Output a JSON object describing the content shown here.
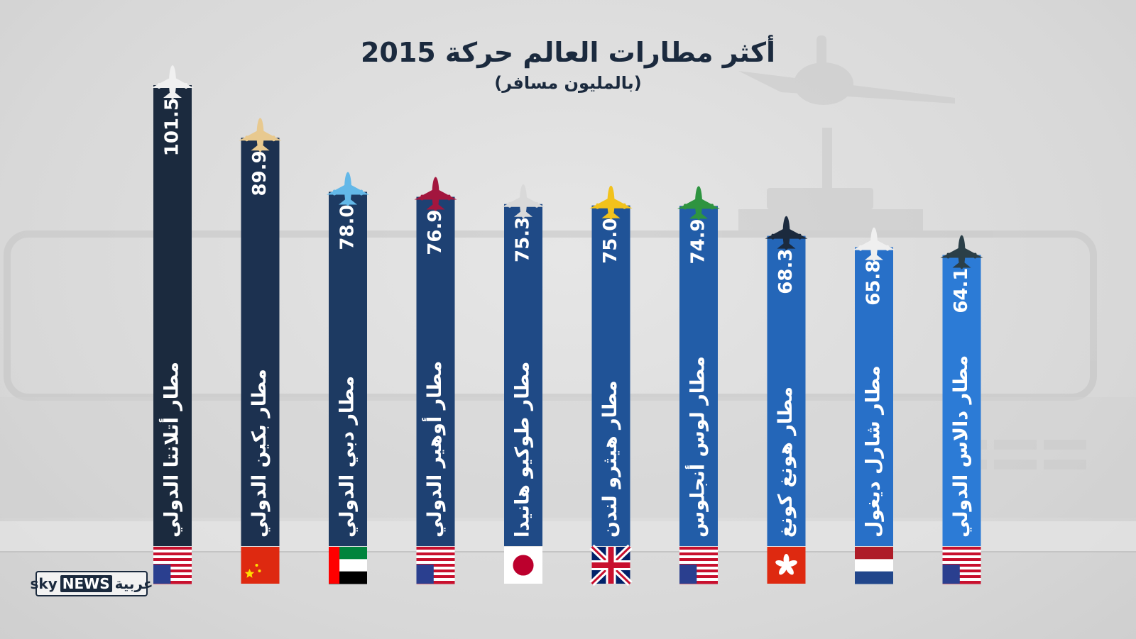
{
  "chart_data": {
    "type": "bar",
    "title": "أكثر مطارات العالم حركة 2015",
    "subtitle": "(بالمليون مسافر)",
    "ylim": [
      0,
      101.5
    ],
    "categories": [
      "مطار أتلانتا الدولي",
      "مطار بكين الدولي",
      "مطار دبي الدولي",
      "مطار أوهير الدولي",
      "مطار طوكيو هانيدا",
      "مطار هيثرو لندن",
      "مطار لوس أنجلوس",
      "مطار هونغ كونغ",
      "مطار شارل ديغول",
      "مطار دالاس الدولي"
    ],
    "values": [
      101.5,
      89.9,
      78.0,
      76.9,
      75.3,
      75.0,
      74.9,
      68.3,
      65.8,
      64.1
    ],
    "value_labels": [
      "101.5",
      "89.9",
      "78.0",
      "76.9",
      "75.3",
      "75.0",
      "74.9",
      "68.3",
      "65.8",
      "64.1"
    ],
    "flags": [
      "usa-flag",
      "china-flag",
      "uae-flag",
      "usa-flag",
      "japan-flag",
      "uk-flag",
      "usa-flag",
      "hong-kong-flag",
      "france-flag",
      "usa-flag"
    ],
    "bar_colors": [
      "#1b2a3e",
      "#1c3150",
      "#1d3a62",
      "#1e4173",
      "#1f4a86",
      "#205397",
      "#225da8",
      "#2466b8",
      "#2870c8",
      "#2c7bd6"
    ],
    "plane_colors": [
      "#f0f0f0",
      "#e8c98f",
      "#63b8e8",
      "#a3163e",
      "#d9d9d9",
      "#f2c21c",
      "#2e9440",
      "#1b2a3e",
      "#efefef",
      "#2b3f48"
    ]
  },
  "logo": {
    "sky": "sky",
    "news": "NEWS",
    "arabia": "عربية"
  }
}
